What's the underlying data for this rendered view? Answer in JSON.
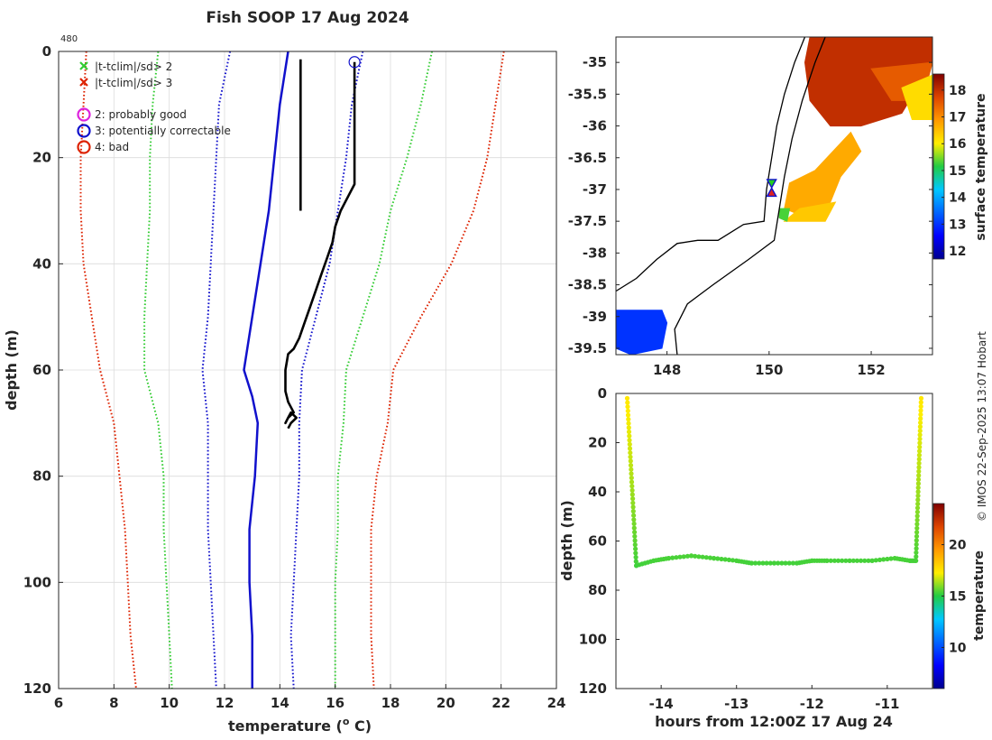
{
  "title": "Fish SOOP 17 Aug 2024",
  "copyright": "© IMOS 22-Sep-2025 13:07 Hobart",
  "colors": {
    "green": "#33cc33",
    "red": "#dd2200",
    "blue": "#1111cc",
    "profile": "#000000",
    "magenta": "#dd22dd"
  },
  "chart_data": [
    {
      "type": "line",
      "id": "profile",
      "title": "Fish SOOP 17 Aug 2024",
      "corner_label": "480",
      "xlabel": "temperature (",
      "xlabel_sup": "o",
      "xlabel_end": " C)",
      "ylabel": "depth (m)",
      "xlim": [
        6,
        24
      ],
      "ylim": [
        120,
        0
      ],
      "xticks": [
        "6",
        "8",
        "10",
        "12",
        "14",
        "16",
        "18",
        "20",
        "22",
        "24"
      ],
      "yticks": [
        "0",
        "20",
        "40",
        "60",
        "80",
        "100",
        "120"
      ],
      "grid": true,
      "legend": [
        {
          "marker": "x",
          "color": "green",
          "label": "|t-tclim|/sd> 2"
        },
        {
          "marker": "x",
          "color": "red",
          "label": "|t-tclim|/sd> 3"
        },
        {
          "marker": "o",
          "color": "magenta",
          "label": "2: probably good"
        },
        {
          "marker": "o",
          "color": "blue",
          "label": "3: potentially correctable"
        },
        {
          "marker": "o",
          "color": "red",
          "label": "4: bad"
        }
      ],
      "flag_marker": {
        "color": "blue",
        "x": 16.7,
        "depth": 2
      },
      "series": [
        {
          "name": "clim_mean",
          "color": "blue",
          "style": "solid",
          "points": [
            [
              14.3,
              0
            ],
            [
              14.0,
              10
            ],
            [
              13.8,
              20
            ],
            [
              13.6,
              30
            ],
            [
              13.3,
              40
            ],
            [
              13.0,
              50
            ],
            [
              12.7,
              60
            ],
            [
              13.0,
              65
            ],
            [
              13.2,
              70
            ],
            [
              13.1,
              80
            ],
            [
              12.9,
              90
            ],
            [
              12.9,
              100
            ],
            [
              13.0,
              110
            ],
            [
              13.0,
              120
            ]
          ]
        },
        {
          "name": "clim_minus_1sd",
          "color": "blue",
          "style": "dotted",
          "points": [
            [
              12.2,
              0
            ],
            [
              11.8,
              10
            ],
            [
              11.7,
              20
            ],
            [
              11.6,
              30
            ],
            [
              11.5,
              40
            ],
            [
              11.4,
              50
            ],
            [
              11.2,
              60
            ],
            [
              11.4,
              70
            ],
            [
              11.4,
              80
            ],
            [
              11.4,
              90
            ],
            [
              11.5,
              100
            ],
            [
              11.6,
              110
            ],
            [
              11.7,
              120
            ]
          ]
        },
        {
          "name": "clim_plus_1sd",
          "color": "blue",
          "style": "dotted",
          "points": [
            [
              17.0,
              0
            ],
            [
              16.8,
              5
            ],
            [
              16.6,
              10
            ],
            [
              16.4,
              20
            ],
            [
              16.1,
              30
            ],
            [
              15.8,
              40
            ],
            [
              15.3,
              50
            ],
            [
              14.8,
              60
            ],
            [
              14.7,
              70
            ],
            [
              14.7,
              80
            ],
            [
              14.6,
              90
            ],
            [
              14.5,
              100
            ],
            [
              14.4,
              110
            ],
            [
              14.5,
              120
            ]
          ]
        },
        {
          "name": "clim_minus_2sd",
          "color": "green",
          "style": "dotted",
          "points": [
            [
              9.6,
              0
            ],
            [
              9.4,
              10
            ],
            [
              9.3,
              20
            ],
            [
              9.3,
              30
            ],
            [
              9.2,
              40
            ],
            [
              9.1,
              50
            ],
            [
              9.1,
              60
            ],
            [
              9.6,
              70
            ],
            [
              9.8,
              80
            ],
            [
              9.8,
              90
            ],
            [
              9.9,
              100
            ],
            [
              10.0,
              110
            ],
            [
              10.1,
              120
            ]
          ]
        },
        {
          "name": "clim_plus_2sd",
          "color": "green",
          "style": "dotted",
          "points": [
            [
              19.5,
              0
            ],
            [
              19.1,
              10
            ],
            [
              18.6,
              20
            ],
            [
              18.0,
              30
            ],
            [
              17.6,
              40
            ],
            [
              17.0,
              50
            ],
            [
              16.4,
              60
            ],
            [
              16.3,
              70
            ],
            [
              16.1,
              80
            ],
            [
              16.1,
              90
            ],
            [
              16.0,
              100
            ],
            [
              16.0,
              110
            ],
            [
              16.0,
              120
            ]
          ]
        },
        {
          "name": "clim_minus_3sd",
          "color": "red",
          "style": "dotted",
          "points": [
            [
              7.0,
              0
            ],
            [
              6.9,
              10
            ],
            [
              6.8,
              20
            ],
            [
              6.8,
              30
            ],
            [
              6.9,
              40
            ],
            [
              7.2,
              50
            ],
            [
              7.5,
              60
            ],
            [
              8.0,
              70
            ],
            [
              8.2,
              80
            ],
            [
              8.4,
              90
            ],
            [
              8.5,
              100
            ],
            [
              8.6,
              110
            ],
            [
              8.8,
              120
            ]
          ]
        },
        {
          "name": "clim_plus_3sd",
          "color": "red",
          "style": "dotted",
          "points": [
            [
              22.1,
              0
            ],
            [
              21.8,
              10
            ],
            [
              21.5,
              20
            ],
            [
              21.0,
              30
            ],
            [
              20.2,
              40
            ],
            [
              19.1,
              50
            ],
            [
              18.1,
              60
            ],
            [
              17.9,
              70
            ],
            [
              17.5,
              80
            ],
            [
              17.3,
              90
            ],
            [
              17.3,
              100
            ],
            [
              17.3,
              110
            ],
            [
              17.4,
              120
            ]
          ]
        },
        {
          "name": "start_stub",
          "color": "profile",
          "style": "solid",
          "points": [
            [
              14.75,
              1.5
            ],
            [
              14.75,
              10
            ],
            [
              14.75,
              20
            ],
            [
              14.75,
              30
            ]
          ]
        },
        {
          "name": "observed_profile",
          "color": "profile",
          "style": "solid",
          "points": [
            [
              16.7,
              2
            ],
            [
              16.7,
              10
            ],
            [
              16.7,
              20
            ],
            [
              16.7,
              25
            ],
            [
              16.5,
              27
            ],
            [
              16.2,
              30
            ],
            [
              16.0,
              33
            ],
            [
              15.9,
              36
            ],
            [
              15.7,
              39
            ],
            [
              15.5,
              42
            ],
            [
              15.3,
              45
            ],
            [
              15.1,
              48
            ],
            [
              14.9,
              51
            ],
            [
              14.7,
              54
            ],
            [
              14.5,
              56
            ],
            [
              14.3,
              57
            ],
            [
              14.2,
              60
            ],
            [
              14.2,
              64
            ],
            [
              14.3,
              66
            ],
            [
              14.4,
              67
            ],
            [
              14.5,
              68
            ],
            [
              14.3,
              69
            ],
            [
              14.2,
              70
            ],
            [
              14.3,
              69
            ],
            [
              14.4,
              68
            ],
            [
              14.6,
              69
            ],
            [
              14.4,
              70
            ],
            [
              14.3,
              71
            ]
          ]
        }
      ]
    },
    {
      "type": "heatmap",
      "id": "sst_map",
      "xlim": [
        147.0,
        153.2
      ],
      "ylim": [
        -39.6,
        -34.6
      ],
      "xticks": [
        "148",
        "150",
        "152"
      ],
      "xtick_values": [
        148,
        150,
        152
      ],
      "yticks": [
        "-35",
        "-35.5",
        "-36",
        "-36.5",
        "-37",
        "-37.5",
        "-38",
        "-38.5",
        "-39",
        "-39.5"
      ],
      "ytick_values": [
        -35,
        -35.5,
        -36,
        -36.5,
        -37,
        -37.5,
        -38,
        -38.5,
        -39,
        -39.5
      ],
      "colorbar_label": "surface temperature",
      "colorbar_range": [
        11.7,
        18.6
      ],
      "colorbar_ticks": [
        "12",
        "13",
        "14",
        "15",
        "16",
        "17",
        "18"
      ],
      "colorbar_tick_values": [
        12,
        13,
        14,
        15,
        16,
        17,
        18
      ],
      "coastline": [
        [
          147.0,
          -38.6
        ],
        [
          147.4,
          -38.4
        ],
        [
          147.8,
          -38.1
        ],
        [
          148.2,
          -37.85
        ],
        [
          148.6,
          -37.8
        ],
        [
          149.0,
          -37.8
        ],
        [
          149.5,
          -37.55
        ],
        [
          149.9,
          -37.5
        ],
        [
          149.95,
          -37.0
        ],
        [
          150.05,
          -36.5
        ],
        [
          150.15,
          -36.0
        ],
        [
          150.3,
          -35.5
        ],
        [
          150.5,
          -35.0
        ],
        [
          150.7,
          -34.6
        ]
      ],
      "shelf_edge": [
        [
          148.2,
          -39.6
        ],
        [
          148.15,
          -39.2
        ],
        [
          148.4,
          -38.8
        ],
        [
          148.9,
          -38.5
        ],
        [
          149.6,
          -38.1
        ],
        [
          150.1,
          -37.8
        ],
        [
          150.2,
          -37.3
        ],
        [
          150.3,
          -36.8
        ],
        [
          150.45,
          -36.2
        ],
        [
          150.65,
          -35.6
        ],
        [
          150.9,
          -35.0
        ],
        [
          151.1,
          -34.6
        ]
      ],
      "patches": [
        {
          "temp": 18.0,
          "poly": [
            [
              150.8,
              -34.6
            ],
            [
              153.2,
              -34.6
            ],
            [
              153.2,
              -35.0
            ],
            [
              152.6,
              -35.8
            ],
            [
              151.8,
              -36.0
            ],
            [
              151.2,
              -36.0
            ],
            [
              150.8,
              -35.6
            ],
            [
              150.7,
              -35.0
            ]
          ]
        },
        {
          "temp": 17.5,
          "poly": [
            [
              152.0,
              -35.1
            ],
            [
              153.2,
              -35.0
            ],
            [
              153.0,
              -35.6
            ],
            [
              152.4,
              -35.6
            ]
          ]
        },
        {
          "temp": 16.7,
          "poly": [
            [
              151.6,
              -36.1
            ],
            [
              151.8,
              -36.4
            ],
            [
              151.4,
              -36.8
            ],
            [
              151.2,
              -37.2
            ],
            [
              150.6,
              -37.4
            ],
            [
              150.3,
              -37.3
            ],
            [
              150.4,
              -36.9
            ],
            [
              150.9,
              -36.7
            ]
          ]
        },
        {
          "temp": 16.4,
          "poly": [
            [
              150.6,
              -37.3
            ],
            [
              151.3,
              -37.2
            ],
            [
              151.1,
              -37.5
            ],
            [
              150.3,
              -37.5
            ]
          ]
        },
        {
          "temp": 16.2,
          "poly": [
            [
              152.6,
              -35.4
            ],
            [
              153.2,
              -35.2
            ],
            [
              153.2,
              -35.9
            ],
            [
              152.8,
              -35.9
            ]
          ]
        },
        {
          "temp": 13.0,
          "poly": [
            [
              147.0,
              -38.9
            ],
            [
              147.9,
              -38.9
            ],
            [
              148.0,
              -39.1
            ],
            [
              147.9,
              -39.5
            ],
            [
              147.3,
              -39.6
            ],
            [
              147.0,
              -39.5
            ]
          ]
        },
        {
          "temp": 15.3,
          "poly": [
            [
              150.2,
              -37.3
            ],
            [
              150.4,
              -37.3
            ],
            [
              150.35,
              -37.5
            ],
            [
              150.2,
              -37.45
            ]
          ]
        }
      ],
      "markers": [
        {
          "lon": 150.05,
          "lat": -36.9,
          "symbol": "triangle-down",
          "color": "#22cc22"
        },
        {
          "lon": 150.05,
          "lat": -37.05,
          "symbol": "triangle-up",
          "color": "#dd2222"
        }
      ]
    },
    {
      "type": "scatter",
      "id": "depth_time",
      "xlabel": "hours from 12:00Z 17 Aug 24",
      "ylabel": "depth (m)",
      "xlim": [
        -14.6,
        -10.4
      ],
      "ylim": [
        120,
        0
      ],
      "xticks": [
        "-14",
        "-13",
        "-12",
        "-11"
      ],
      "xtick_values": [
        -14,
        -13,
        -12,
        -11
      ],
      "yticks": [
        "0",
        "20",
        "40",
        "60",
        "80",
        "100",
        "120"
      ],
      "ytick_values": [
        0,
        20,
        40,
        60,
        80,
        100,
        120
      ],
      "colorbar_label": "temperature",
      "colorbar_range": [
        6,
        24
      ],
      "colorbar_ticks": [
        "10",
        "15",
        "20"
      ],
      "colorbar_tick_values": [
        10,
        15,
        20
      ],
      "descent": {
        "hours": [
          -14.45,
          -14.33
        ],
        "depths": [
          2,
          70
        ]
      },
      "ascent": {
        "hours": [
          -10.62,
          -10.55
        ],
        "depths": [
          68,
          2
        ]
      },
      "bottom_track": {
        "hours": [
          -14.33,
          -14.1,
          -13.9,
          -13.6,
          -13.3,
          -13.0,
          -12.8,
          -12.5,
          -12.2,
          -12.0,
          -11.8,
          -11.5,
          -11.2,
          -10.9,
          -10.7,
          -10.62
        ],
        "depths": [
          70,
          68,
          67,
          66,
          67,
          68,
          69,
          69,
          69,
          68,
          68,
          68,
          68,
          67,
          68,
          68
        ]
      }
    }
  ]
}
